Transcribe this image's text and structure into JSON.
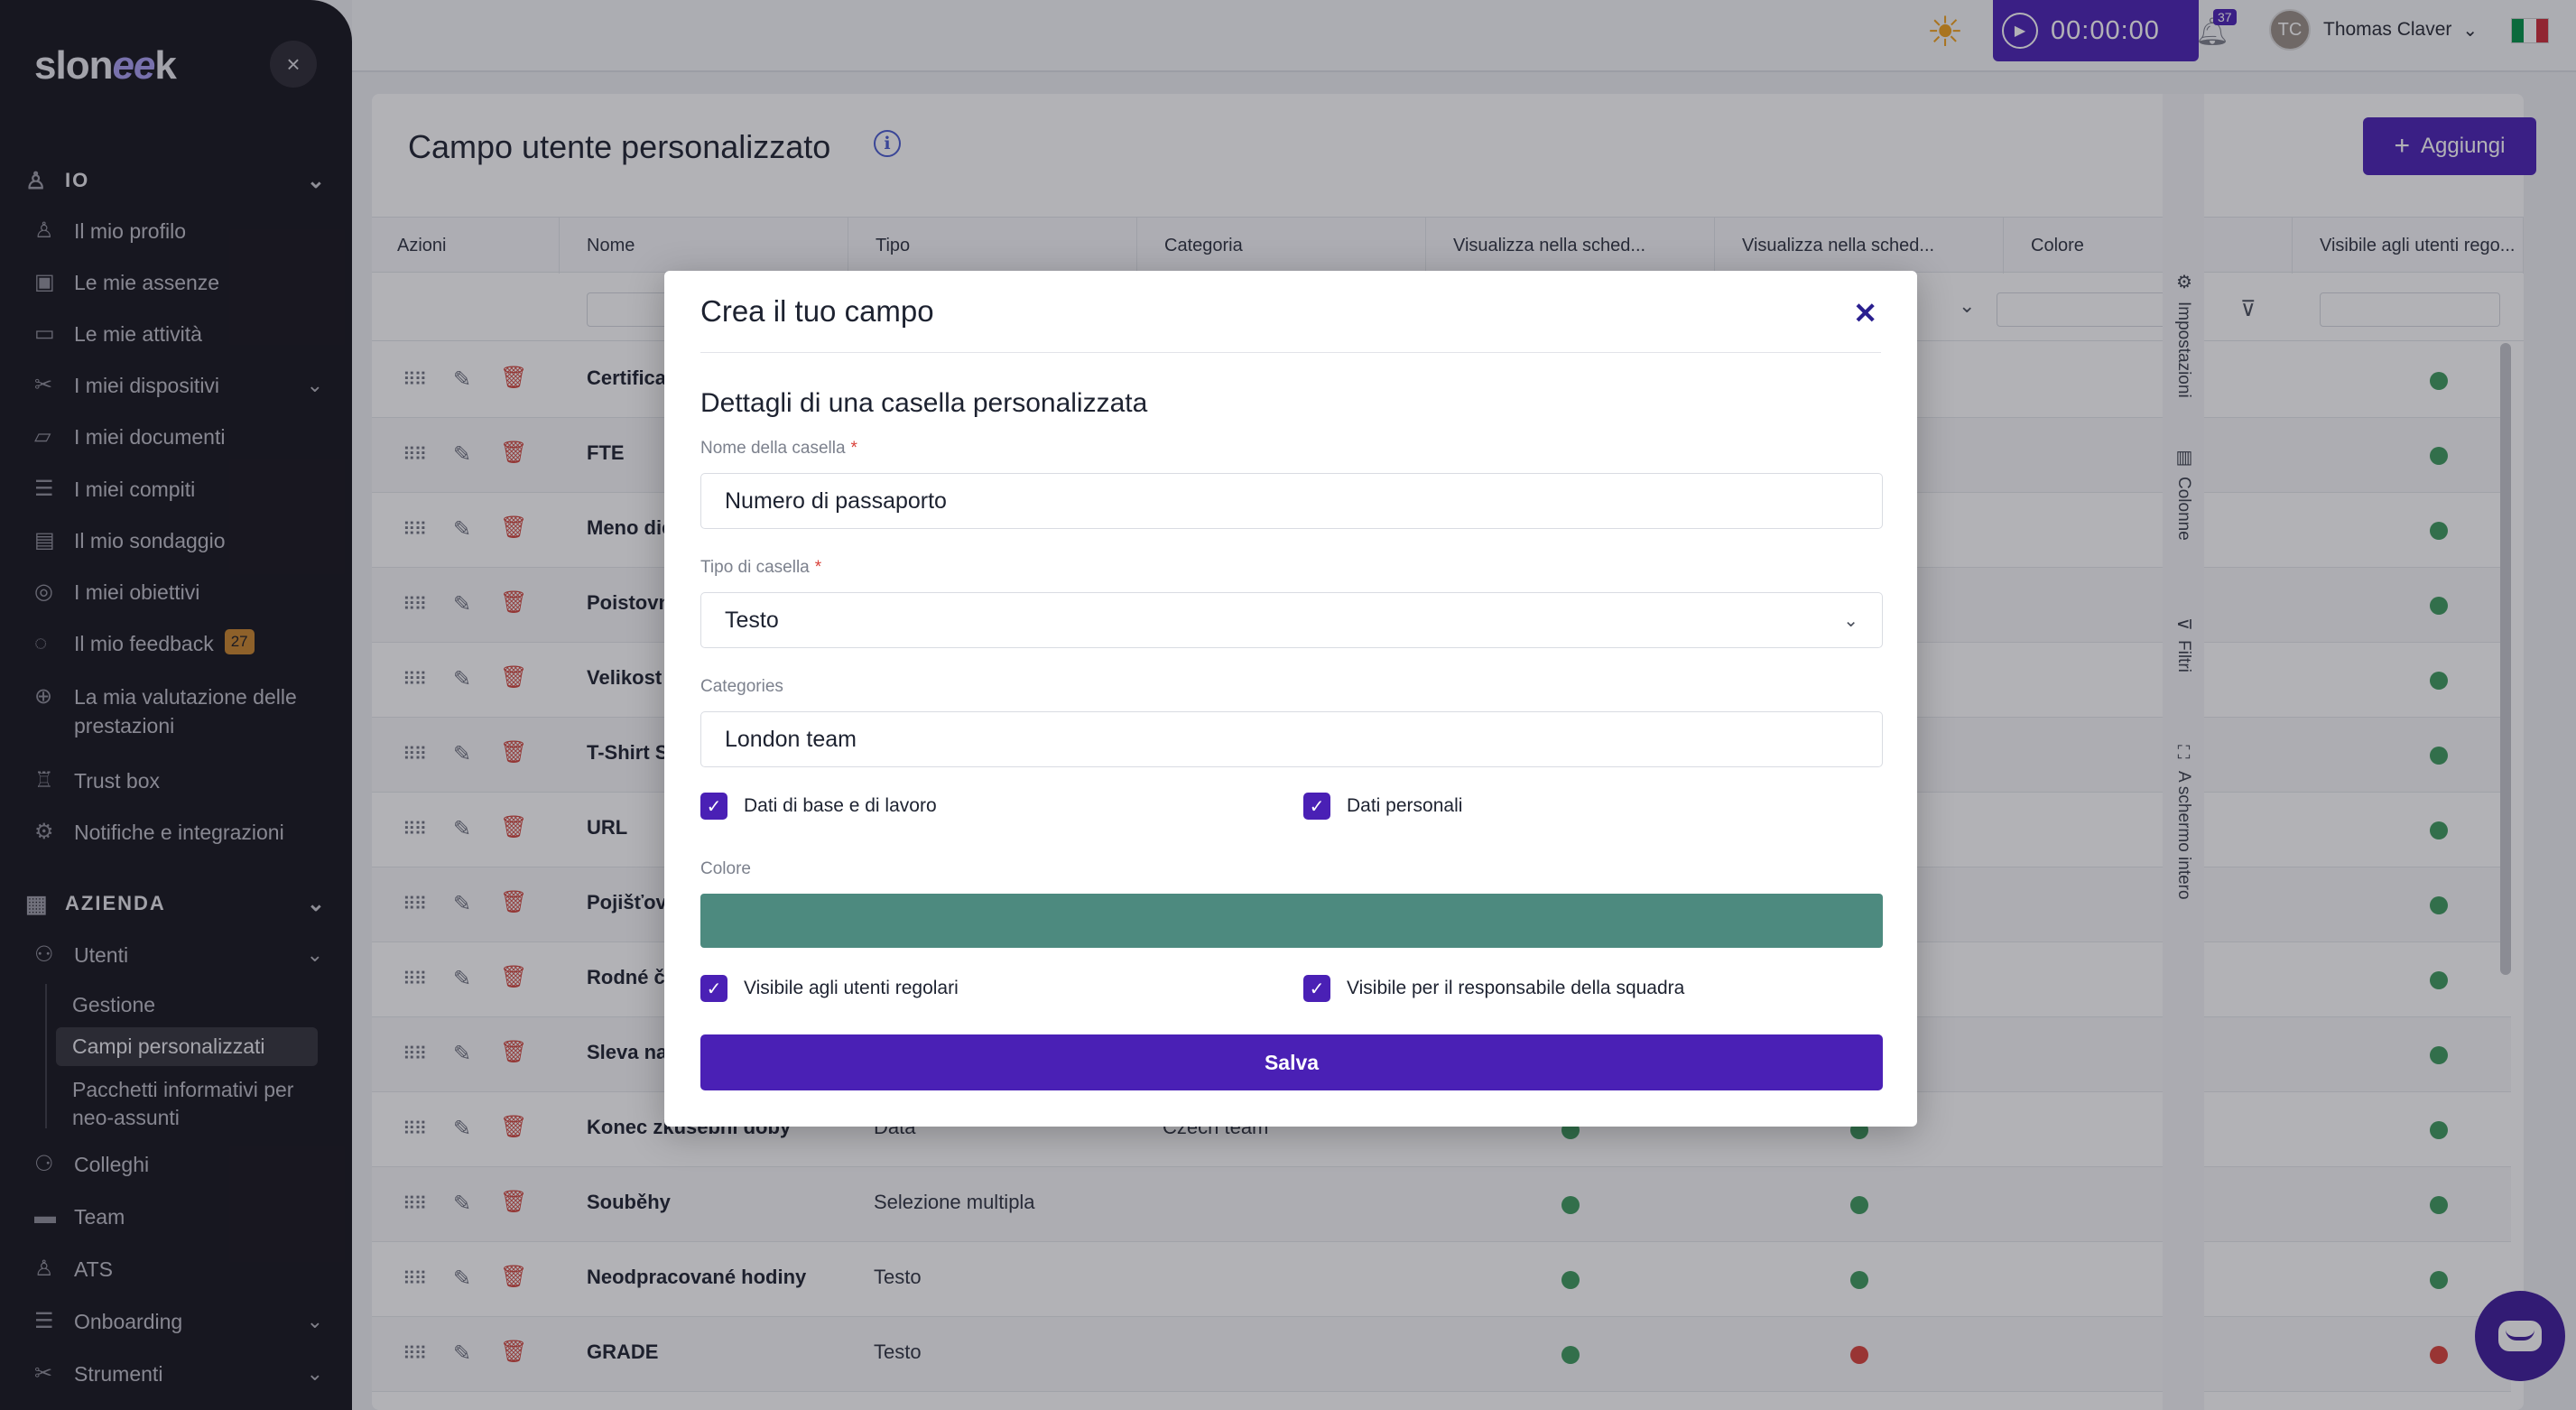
{
  "app": {
    "logo_main": "slon",
    "logo_accent": "ee",
    "logo_end": "k",
    "close_glyph": "×"
  },
  "sidebar": {
    "section_io": "IO",
    "io_items": [
      {
        "label": "Il mio profilo",
        "icon": "user-icon"
      },
      {
        "label": "Le mie assenze",
        "icon": "calendar-icon"
      },
      {
        "label": "Le mie attività",
        "icon": "book-icon"
      },
      {
        "label": "I miei dispositivi",
        "icon": "tools-icon"
      },
      {
        "label": "I miei documenti",
        "icon": "folder-icon"
      },
      {
        "label": "I miei compiti",
        "icon": "checklist-icon"
      },
      {
        "label": "Il mio sondaggio",
        "icon": "survey-icon"
      },
      {
        "label": "I miei obiettivi",
        "icon": "target-icon"
      },
      {
        "label": "Il mio feedback",
        "icon": "chat-icon",
        "badge": "27"
      },
      {
        "label": "La mia valutazione delle prestazioni",
        "icon": "globe-icon"
      },
      {
        "label": "Trust box",
        "icon": "trust-icon"
      },
      {
        "label": "Notifiche e integrazioni",
        "icon": "gear-icon"
      }
    ],
    "section_azienda": "AZIENDA",
    "azienda_items": [
      {
        "label": "Utenti",
        "icon": "users-icon"
      },
      {
        "label": "Colleghi",
        "icon": "colleagues-icon"
      },
      {
        "label": "Team",
        "icon": "team-icon"
      },
      {
        "label": "ATS",
        "icon": "ats-icon"
      },
      {
        "label": "Onboarding",
        "icon": "onboarding-icon"
      },
      {
        "label": "Strumenti",
        "icon": "tools-icon"
      }
    ],
    "utenti_sub": [
      {
        "label": "Gestione"
      },
      {
        "label": "Campi personalizzati",
        "active": true
      },
      {
        "label": "Pacchetti informativi per neo-assunti"
      }
    ]
  },
  "header": {
    "timer": "00:00:00",
    "notif_count": "37",
    "user_name": "Thomas Claver",
    "user_initials": "TC",
    "flag_colors": [
      "#009246",
      "#ffffff",
      "#ce2b37"
    ]
  },
  "page": {
    "title": "Campo utente personalizzato",
    "add_label": "Aggiungi",
    "columns": [
      "Azioni",
      "Nome",
      "Tipo",
      "Categoria",
      "Visualizza nella sched...",
      "Visualizza nella sched...",
      "Colore",
      "Visibile agli utenti rego..."
    ],
    "rows": [
      {
        "name": "Certifica",
        "tipo": "",
        "cat": "",
        "dots": [
          "",
          "",
          "g"
        ]
      },
      {
        "name": "FTE",
        "tipo": "",
        "cat": "",
        "dots": [
          "",
          "",
          "g"
        ]
      },
      {
        "name": "Meno die",
        "tipo": "",
        "cat": "",
        "dots": [
          "",
          "",
          "g"
        ]
      },
      {
        "name": "Poistovn",
        "tipo": "",
        "cat": "",
        "dots": [
          "",
          "",
          "g"
        ]
      },
      {
        "name": "Velikost",
        "tipo": "",
        "cat": "",
        "dots": [
          "",
          "",
          "g"
        ]
      },
      {
        "name": "T-Shirt S",
        "tipo": "",
        "cat": "",
        "dots": [
          "",
          "",
          "g"
        ]
      },
      {
        "name": "URL",
        "tipo": "",
        "cat": "",
        "dots": [
          "",
          "",
          "g"
        ]
      },
      {
        "name": "Pojišťovn",
        "tipo": "",
        "cat": "",
        "dots": [
          "",
          "",
          "g"
        ]
      },
      {
        "name": "Rodné čí",
        "tipo": "",
        "cat": "",
        "dots": [
          "",
          "",
          "g"
        ]
      },
      {
        "name": "Sleva na",
        "tipo": "",
        "cat": "",
        "dots": [
          "",
          "",
          "g"
        ]
      },
      {
        "name": "Konec zkušební doby",
        "tipo": "Data",
        "cat": "Czech team",
        "dots": [
          "g",
          "g",
          "g"
        ]
      },
      {
        "name": "Souběhy",
        "tipo": "Selezione multipla",
        "cat": "",
        "dots": [
          "g",
          "g",
          "g"
        ]
      },
      {
        "name": "Neodpracované hodiny",
        "tipo": "Testo",
        "cat": "",
        "dots": [
          "g",
          "g",
          "g"
        ]
      },
      {
        "name": "GRADE",
        "tipo": "Testo",
        "cat": "",
        "dots": [
          "g",
          "r",
          "r"
        ]
      }
    ],
    "side_tabs": [
      {
        "label": "Impostazioni",
        "icon": "gear-icon"
      },
      {
        "label": "Colonne",
        "icon": "columns-icon"
      },
      {
        "label": "Filtri",
        "icon": "filter-icon"
      },
      {
        "label": "A schermo intero",
        "icon": "fullscreen-icon"
      }
    ]
  },
  "modal": {
    "title": "Crea il tuo campo",
    "subtitle": "Dettagli di una casella personalizzata",
    "name_label": "Nome della casella",
    "name_value": "Numero di passaporto",
    "type_label": "Tipo di casella",
    "type_value": "Testo",
    "categories_label": "Categories",
    "categories_value": "London team",
    "cb_basic": "Dati di base e di lavoro",
    "cb_personal": "Dati personali",
    "color_label": "Colore",
    "color_value": "#4d8a7f",
    "cb_visible_users": "Visibile agli utenti regolari",
    "cb_visible_leader": "Visibile per il responsabile della squadra",
    "save_label": "Salva",
    "required_mark": "*"
  }
}
